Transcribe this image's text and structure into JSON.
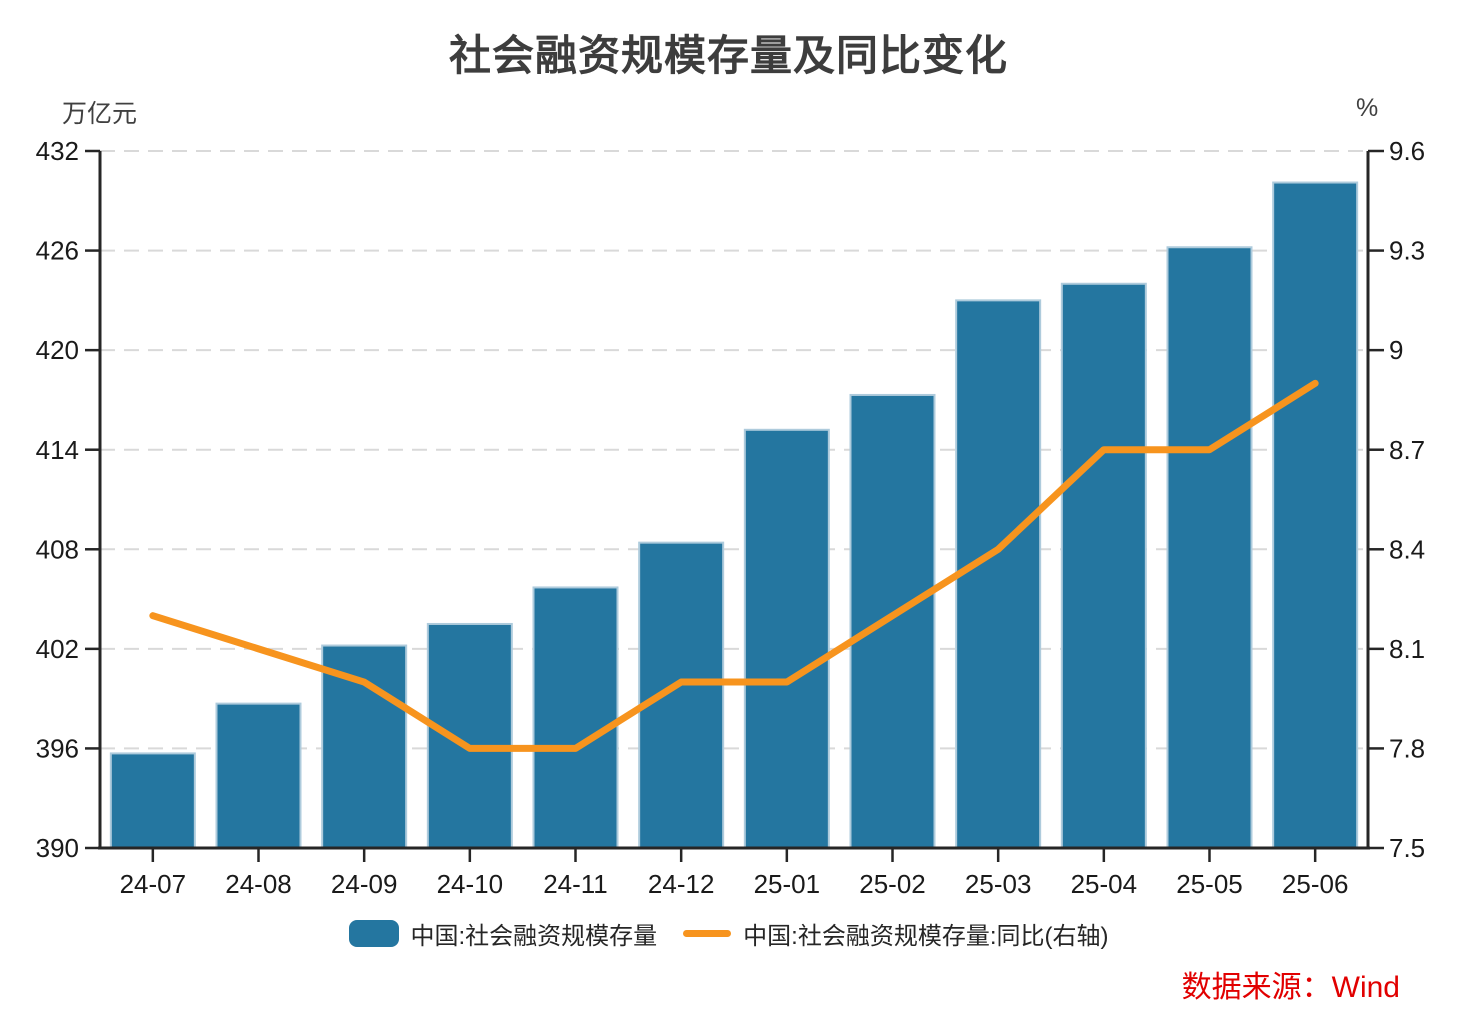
{
  "title": "社会融资规模存量及同比变化",
  "source": "数据来源：Wind",
  "colors": {
    "bar": "#2476A0",
    "bar_border": "#AECBDC",
    "line": "#F7941E",
    "source_text": "#E10000",
    "title_text": "#3D3D3D",
    "grid": "#D9D9D9",
    "axis": "#262626"
  },
  "legend": [
    {
      "type": "bar",
      "label": "中国:社会融资规模存量"
    },
    {
      "type": "line",
      "label": "中国:社会融资规模存量:同比(右轴)"
    }
  ],
  "chart_data": {
    "type": "bar+line",
    "title": "社会融资规模存量及同比变化",
    "categories": [
      "24-07",
      "24-08",
      "24-09",
      "24-10",
      "24-11",
      "24-12",
      "25-01",
      "25-02",
      "25-03",
      "25-04",
      "25-05",
      "25-06"
    ],
    "series": [
      {
        "name": "中国:社会融资规模存量",
        "type": "bar",
        "axis": "left",
        "unit": "万亿元",
        "values": [
          395.7,
          398.7,
          402.2,
          403.5,
          405.7,
          408.4,
          415.2,
          417.3,
          423.0,
          424.0,
          426.2,
          430.1
        ]
      },
      {
        "name": "中国:社会融资规模存量:同比(右轴)",
        "type": "line",
        "axis": "right",
        "unit": "%",
        "values": [
          8.2,
          8.1,
          8.0,
          7.8,
          7.8,
          8.0,
          8.0,
          8.2,
          8.4,
          8.7,
          8.7,
          8.9
        ]
      }
    ],
    "left_axis": {
      "label": "万亿元",
      "min": 390,
      "max": 432,
      "ticks": [
        390,
        396,
        402,
        408,
        414,
        420,
        426,
        432
      ]
    },
    "right_axis": {
      "label": "%",
      "min": 7.5,
      "max": 9.6,
      "ticks": [
        7.5,
        7.8,
        8.1,
        8.4,
        8.7,
        9,
        9.3,
        9.6
      ]
    },
    "grid": "horizontal-dashed",
    "legend_position": "bottom"
  }
}
